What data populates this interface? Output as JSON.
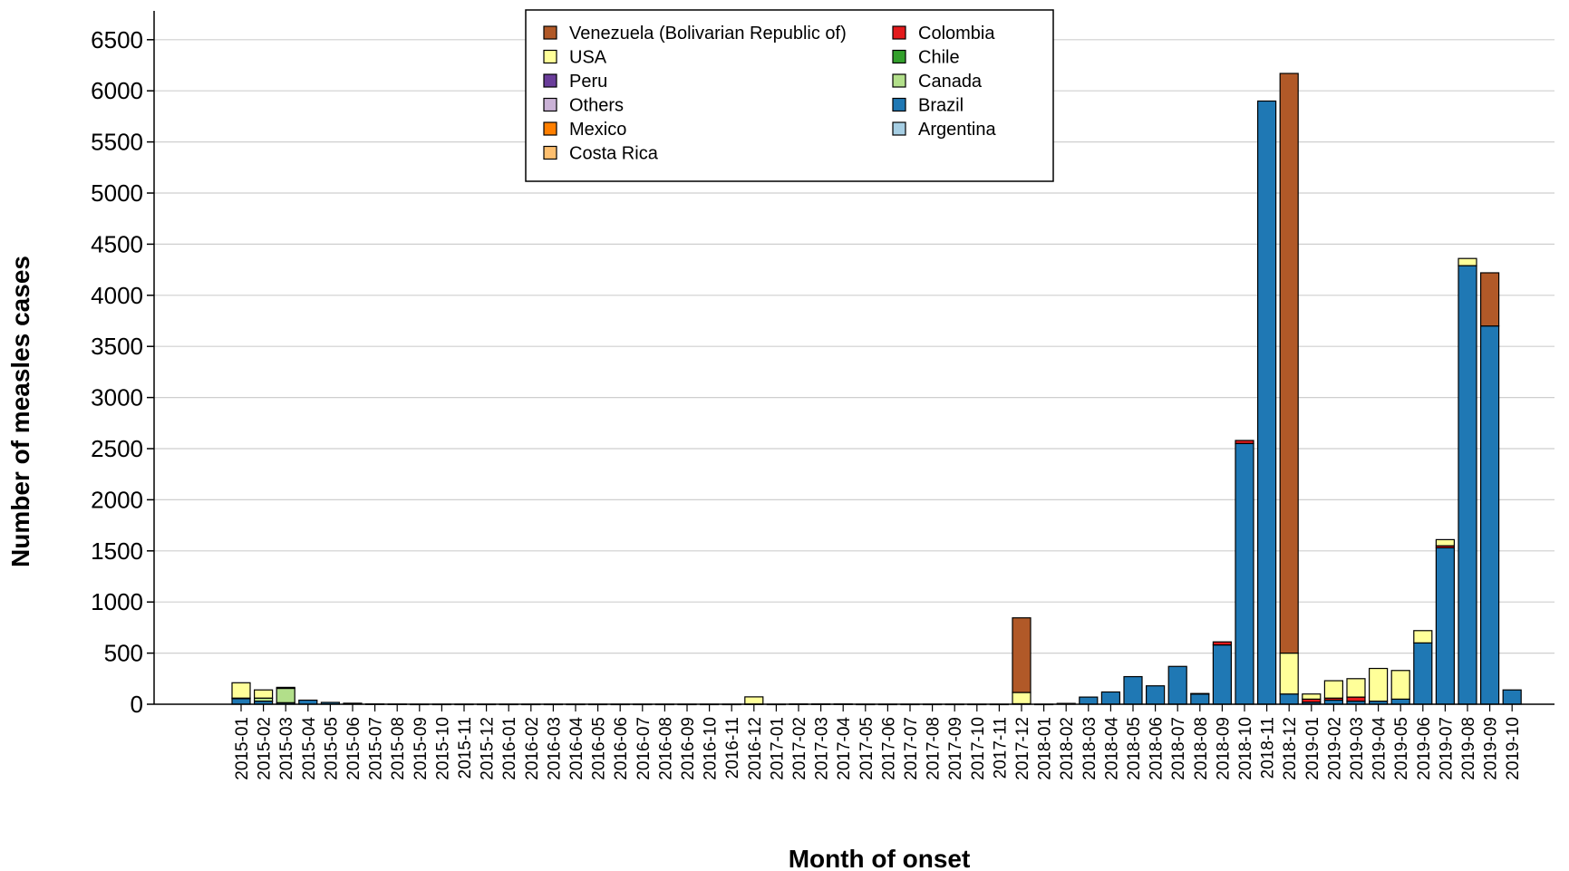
{
  "chart_data": {
    "type": "bar",
    "stacked": true,
    "xlabel": "Month of onset",
    "ylabel": "Number of measles cases",
    "ylim": [
      0,
      6800
    ],
    "yticks": [
      0,
      500,
      1000,
      1500,
      2000,
      2500,
      3000,
      3500,
      4000,
      4500,
      5000,
      5500,
      6000,
      6500
    ],
    "grid": "horizontal",
    "legend_position": "top-center",
    "categories": [
      "2015-01",
      "2015-02",
      "2015-03",
      "2015-04",
      "2015-05",
      "2015-06",
      "2015-07",
      "2015-08",
      "2015-09",
      "2015-10",
      "2015-11",
      "2015-12",
      "2016-01",
      "2016-02",
      "2016-03",
      "2016-04",
      "2016-05",
      "2016-06",
      "2016-07",
      "2016-08",
      "2016-09",
      "2016-10",
      "2016-11",
      "2016-12",
      "2017-01",
      "2017-02",
      "2017-03",
      "2017-04",
      "2017-05",
      "2017-06",
      "2017-07",
      "2017-08",
      "2017-09",
      "2017-10",
      "2017-11",
      "2017-12",
      "2018-01",
      "2018-02",
      "2018-03",
      "2018-04",
      "2018-05",
      "2018-06",
      "2018-07",
      "2018-08",
      "2018-09",
      "2018-10",
      "2018-11",
      "2018-12",
      "2019-01",
      "2019-02",
      "2019-03",
      "2019-04",
      "2019-05",
      "2019-06",
      "2019-07",
      "2019-08",
      "2019-09",
      "2019-10"
    ],
    "series": [
      {
        "name": "Argentina",
        "color": "#a6cee3",
        "values": [
          0,
          0,
          0,
          0,
          0,
          0,
          0,
          0,
          0,
          0,
          0,
          0,
          0,
          0,
          0,
          0,
          0,
          0,
          0,
          0,
          0,
          0,
          0,
          0,
          0,
          0,
          0,
          0,
          0,
          0,
          0,
          0,
          0,
          0,
          0,
          0,
          0,
          0,
          0,
          0,
          0,
          0,
          0,
          0,
          0,
          0,
          0,
          0,
          0,
          0,
          0,
          0,
          0,
          0,
          0,
          0,
          0,
          0
        ]
      },
      {
        "name": "Brazil",
        "color": "#1f78b4",
        "values": [
          55,
          30,
          15,
          40,
          18,
          10,
          3,
          2,
          1,
          1,
          1,
          1,
          1,
          1,
          1,
          1,
          1,
          1,
          1,
          1,
          1,
          1,
          1,
          2,
          1,
          3,
          3,
          3,
          1,
          1,
          1,
          1,
          1,
          1,
          1,
          5,
          1,
          8,
          70,
          120,
          270,
          180,
          370,
          100,
          580,
          2550,
          5900,
          100,
          20,
          40,
          30,
          30,
          50,
          600,
          1530,
          4290,
          3700,
          140
        ]
      },
      {
        "name": "Canada",
        "color": "#b2df8a",
        "values": [
          5,
          30,
          140,
          0,
          0,
          0,
          0,
          0,
          0,
          0,
          0,
          0,
          0,
          0,
          0,
          0,
          0,
          0,
          0,
          0,
          0,
          0,
          0,
          0,
          0,
          0,
          0,
          0,
          0,
          0,
          0,
          0,
          0,
          0,
          0,
          0,
          0,
          0,
          0,
          0,
          0,
          0,
          0,
          0,
          0,
          0,
          0,
          0,
          0,
          0,
          0,
          0,
          0,
          0,
          0,
          0,
          0,
          0
        ]
      },
      {
        "name": "Chile",
        "color": "#33a02c",
        "values": [
          0,
          0,
          0,
          0,
          0,
          0,
          0,
          0,
          0,
          0,
          0,
          0,
          0,
          0,
          0,
          0,
          0,
          0,
          0,
          0,
          0,
          0,
          0,
          0,
          0,
          0,
          0,
          0,
          0,
          0,
          0,
          0,
          0,
          0,
          0,
          0,
          0,
          0,
          0,
          0,
          0,
          0,
          0,
          0,
          0,
          0,
          0,
          0,
          0,
          0,
          0,
          0,
          0,
          0,
          0,
          0,
          0,
          0
        ]
      },
      {
        "name": "Colombia",
        "color": "#e31a1c",
        "values": [
          0,
          0,
          0,
          0,
          0,
          0,
          0,
          0,
          0,
          0,
          0,
          0,
          0,
          0,
          0,
          0,
          0,
          0,
          0,
          0,
          0,
          0,
          0,
          0,
          0,
          0,
          0,
          0,
          0,
          0,
          0,
          0,
          0,
          0,
          0,
          0,
          0,
          0,
          0,
          0,
          0,
          0,
          0,
          5,
          30,
          30,
          0,
          0,
          30,
          20,
          40,
          0,
          0,
          0,
          20,
          0,
          0,
          0
        ]
      },
      {
        "name": "Costa Rica",
        "color": "#fdbf6f",
        "values": [
          0,
          0,
          0,
          0,
          0,
          0,
          0,
          0,
          0,
          0,
          0,
          0,
          0,
          0,
          0,
          0,
          0,
          0,
          0,
          0,
          0,
          0,
          0,
          0,
          0,
          0,
          0,
          0,
          0,
          0,
          0,
          0,
          0,
          0,
          0,
          0,
          0,
          0,
          0,
          0,
          0,
          0,
          0,
          0,
          0,
          0,
          0,
          0,
          0,
          0,
          0,
          0,
          0,
          0,
          0,
          0,
          0,
          0
        ]
      },
      {
        "name": "Mexico",
        "color": "#ff7f00",
        "values": [
          0,
          0,
          0,
          0,
          0,
          0,
          0,
          0,
          0,
          0,
          0,
          0,
          0,
          0,
          0,
          0,
          0,
          0,
          0,
          0,
          0,
          0,
          0,
          0,
          0,
          0,
          0,
          0,
          0,
          0,
          0,
          0,
          0,
          0,
          0,
          0,
          0,
          0,
          0,
          0,
          0,
          0,
          0,
          0,
          0,
          0,
          0,
          0,
          0,
          0,
          0,
          0,
          0,
          0,
          0,
          0,
          0,
          0
        ]
      },
      {
        "name": "Others",
        "color": "#cab2d6",
        "values": [
          0,
          0,
          0,
          0,
          0,
          0,
          0,
          0,
          0,
          0,
          0,
          0,
          0,
          0,
          0,
          0,
          0,
          0,
          0,
          0,
          0,
          0,
          0,
          0,
          0,
          0,
          0,
          0,
          0,
          0,
          0,
          0,
          0,
          0,
          0,
          0,
          0,
          0,
          0,
          0,
          0,
          0,
          0,
          0,
          0,
          0,
          0,
          0,
          0,
          0,
          0,
          0,
          0,
          0,
          0,
          0,
          0,
          0
        ]
      },
      {
        "name": "Peru",
        "color": "#6a3d9a",
        "values": [
          0,
          0,
          0,
          0,
          0,
          0,
          0,
          0,
          0,
          0,
          0,
          0,
          0,
          0,
          0,
          0,
          0,
          0,
          0,
          0,
          0,
          0,
          0,
          0,
          0,
          0,
          0,
          0,
          0,
          0,
          0,
          0,
          0,
          0,
          0,
          0,
          0,
          0,
          0,
          0,
          0,
          0,
          0,
          0,
          0,
          0,
          0,
          0,
          0,
          0,
          0,
          0,
          0,
          0,
          0,
          0,
          0,
          0
        ]
      },
      {
        "name": "USA",
        "color": "#ffff99",
        "values": [
          150,
          80,
          10,
          0,
          0,
          0,
          0,
          0,
          0,
          0,
          0,
          0,
          0,
          0,
          0,
          0,
          0,
          0,
          0,
          0,
          0,
          0,
          0,
          70,
          0,
          0,
          0,
          0,
          0,
          0,
          0,
          0,
          0,
          0,
          0,
          110,
          0,
          0,
          0,
          0,
          0,
          0,
          0,
          0,
          0,
          0,
          0,
          400,
          50,
          170,
          180,
          320,
          280,
          120,
          60,
          70,
          0,
          0
        ]
      },
      {
        "name": "Venezuela (Bolivarian Republic of)",
        "color": "#b15928",
        "values": [
          0,
          0,
          0,
          0,
          0,
          0,
          0,
          0,
          0,
          0,
          0,
          0,
          0,
          0,
          0,
          0,
          0,
          0,
          0,
          0,
          0,
          0,
          0,
          0,
          0,
          0,
          0,
          0,
          0,
          0,
          0,
          0,
          0,
          0,
          0,
          730,
          0,
          0,
          0,
          0,
          0,
          0,
          0,
          0,
          0,
          0,
          0,
          5670,
          0,
          0,
          0,
          0,
          0,
          0,
          0,
          0,
          520,
          0
        ]
      }
    ],
    "legend_entries": [
      {
        "name": "Venezuela (Bolivarian Republic of)",
        "color": "#b15928"
      },
      {
        "name": "USA",
        "color": "#ffff99"
      },
      {
        "name": "Peru",
        "color": "#6a3d9a"
      },
      {
        "name": "Others",
        "color": "#cab2d6"
      },
      {
        "name": "Mexico",
        "color": "#ff7f00"
      },
      {
        "name": "Costa Rica",
        "color": "#fdbf6f"
      },
      {
        "name": "Colombia",
        "color": "#e31a1c"
      },
      {
        "name": "Chile",
        "color": "#33a02c"
      },
      {
        "name": "Canada",
        "color": "#b2df8a"
      },
      {
        "name": "Brazil",
        "color": "#1f78b4"
      },
      {
        "name": "Argentina",
        "color": "#a6cee3"
      }
    ]
  }
}
